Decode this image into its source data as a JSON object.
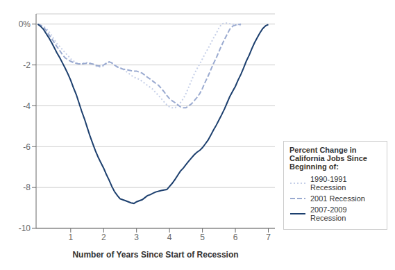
{
  "chart_data": {
    "type": "line",
    "xlabel": "Number of Years Since Start of Recession",
    "xlim": [
      -0.05,
      7.2
    ],
    "xticks": [
      1,
      2,
      3,
      4,
      5,
      6,
      7
    ],
    "ylim": [
      -10,
      0.5
    ],
    "yticks": [
      {
        "value": 0,
        "label": "0%"
      },
      -2,
      -4,
      -6,
      -8,
      -10
    ],
    "grid": "y",
    "legend": "lower right",
    "legend_title": "Percent Change in\nCalifornia Jobs Since\nBeginning of:",
    "series": [
      {
        "name": "1990-1991 Recession",
        "color": "#c5cfe8",
        "line_style": "dotted",
        "x": [
          0.0,
          0.08,
          0.17,
          0.25,
          0.33,
          0.42,
          0.5,
          0.58,
          0.67,
          0.75,
          0.83,
          0.92,
          1.0,
          1.08,
          1.17,
          1.25,
          1.33,
          1.42,
          1.5,
          1.58,
          1.67,
          1.75,
          1.83,
          1.92,
          2.0,
          2.08,
          2.17,
          2.25,
          2.33,
          2.42,
          2.5,
          2.58,
          2.67,
          2.75,
          2.83,
          2.92,
          3.0,
          3.08,
          3.17,
          3.25,
          3.33,
          3.42,
          3.5,
          3.58,
          3.67,
          3.75,
          3.83,
          3.92,
          4.0,
          4.08,
          4.17,
          4.17,
          4.25,
          4.33,
          4.42,
          4.5,
          4.58,
          4.67,
          4.75,
          4.83,
          4.92,
          5.0,
          5.08,
          5.17,
          5.25,
          5.33,
          5.42,
          5.5,
          5.58,
          5.67,
          5.75,
          5.83,
          5.92,
          6.0,
          6.08,
          6.17
        ],
        "values": [
          0.0,
          -0.05,
          -0.1,
          -0.2,
          -0.35,
          -0.55,
          -0.75,
          -0.95,
          -1.1,
          -1.25,
          -1.4,
          -1.55,
          -1.7,
          -1.8,
          -1.9,
          -1.95,
          -1.95,
          -1.9,
          -1.88,
          -1.9,
          -1.95,
          -2.05,
          -2.1,
          -2.1,
          -2.05,
          -1.95,
          -1.85,
          -1.9,
          -2.0,
          -2.1,
          -2.15,
          -2.2,
          -2.3,
          -2.4,
          -2.5,
          -2.6,
          -2.65,
          -2.7,
          -2.8,
          -2.9,
          -3.0,
          -3.1,
          -3.2,
          -3.35,
          -3.5,
          -3.65,
          -3.8,
          -3.95,
          -4.05,
          -4.1,
          -4.1,
          -4.1,
          -4.0,
          -3.85,
          -3.65,
          -3.4,
          -3.1,
          -2.75,
          -2.45,
          -2.2,
          -1.95,
          -1.7,
          -1.45,
          -1.2,
          -0.95,
          -0.7,
          -0.45,
          -0.2,
          0.0,
          0.05,
          0.05,
          0.02,
          0.0,
          -0.02,
          -0.05,
          -0.05
        ]
      },
      {
        "name": "2001 Recession",
        "color": "#9aaad0",
        "line_style": "dashed",
        "x": [
          0.0,
          0.08,
          0.17,
          0.25,
          0.33,
          0.42,
          0.5,
          0.58,
          0.67,
          0.75,
          0.83,
          0.92,
          1.0,
          1.08,
          1.17,
          1.25,
          1.33,
          1.42,
          1.5,
          1.58,
          1.67,
          1.75,
          1.83,
          1.92,
          2.0,
          2.08,
          2.17,
          2.25,
          2.33,
          2.42,
          2.5,
          2.58,
          2.67,
          2.75,
          2.83,
          2.92,
          3.0,
          3.08,
          3.17,
          3.25,
          3.33,
          3.42,
          3.5,
          3.58,
          3.67,
          3.75,
          3.83,
          3.92,
          4.0,
          4.08,
          4.17,
          4.25,
          4.33,
          4.42,
          4.5,
          4.58,
          4.67,
          4.75,
          4.83,
          4.92,
          5.0,
          5.08,
          5.17,
          5.25,
          5.33,
          5.42,
          5.5,
          5.58,
          5.67,
          5.75,
          5.83,
          5.92,
          6.0,
          6.08,
          6.17
        ],
        "values": [
          0.0,
          -0.05,
          -0.15,
          -0.3,
          -0.5,
          -0.7,
          -0.9,
          -1.1,
          -1.3,
          -1.5,
          -1.65,
          -1.75,
          -1.82,
          -1.88,
          -1.92,
          -1.95,
          -1.95,
          -1.93,
          -1.92,
          -1.93,
          -1.95,
          -2.0,
          -2.05,
          -2.05,
          -2.0,
          -1.92,
          -1.85,
          -1.9,
          -2.0,
          -2.1,
          -2.15,
          -2.2,
          -2.22,
          -2.25,
          -2.28,
          -2.3,
          -2.3,
          -2.35,
          -2.4,
          -2.5,
          -2.6,
          -2.7,
          -2.8,
          -2.9,
          -3.0,
          -3.15,
          -3.3,
          -3.5,
          -3.65,
          -3.75,
          -3.85,
          -3.95,
          -4.05,
          -4.1,
          -4.1,
          -4.0,
          -3.9,
          -3.75,
          -3.6,
          -3.4,
          -3.15,
          -2.85,
          -2.55,
          -2.25,
          -1.95,
          -1.65,
          -1.35,
          -1.05,
          -0.75,
          -0.5,
          -0.25,
          -0.1,
          -0.05,
          -0.02,
          0.0
        ]
      },
      {
        "name": "2007-2009 Recession",
        "color": "#1c3f6e",
        "line_style": "solid",
        "x": [
          0.0,
          0.08,
          0.17,
          0.25,
          0.33,
          0.42,
          0.5,
          0.58,
          0.67,
          0.75,
          0.83,
          0.92,
          1.0,
          1.08,
          1.17,
          1.25,
          1.33,
          1.42,
          1.5,
          1.58,
          1.67,
          1.75,
          1.83,
          1.92,
          2.0,
          2.08,
          2.17,
          2.25,
          2.33,
          2.42,
          2.5,
          2.58,
          2.67,
          2.75,
          2.83,
          2.92,
          3.0,
          3.08,
          3.17,
          3.25,
          3.33,
          3.42,
          3.5,
          3.58,
          3.67,
          3.75,
          3.83,
          3.92,
          4.0,
          4.08,
          4.17,
          4.25,
          4.33,
          4.42,
          4.5,
          4.58,
          4.67,
          4.75,
          4.83,
          4.92,
          5.0,
          5.08,
          5.17,
          5.25,
          5.33,
          5.42,
          5.5,
          5.58,
          5.67,
          5.75,
          5.83,
          5.92,
          6.0,
          6.08,
          6.17,
          6.25,
          6.33,
          6.42,
          6.5,
          6.58,
          6.67,
          6.75,
          6.83,
          6.92,
          7.0
        ],
        "values": [
          0.0,
          -0.1,
          -0.25,
          -0.45,
          -0.65,
          -0.9,
          -1.15,
          -1.4,
          -1.65,
          -1.9,
          -2.15,
          -2.45,
          -2.75,
          -3.1,
          -3.45,
          -3.85,
          -4.25,
          -4.65,
          -5.05,
          -5.45,
          -5.85,
          -6.2,
          -6.5,
          -6.8,
          -7.05,
          -7.35,
          -7.65,
          -7.95,
          -8.2,
          -8.4,
          -8.55,
          -8.6,
          -8.65,
          -8.7,
          -8.75,
          -8.78,
          -8.7,
          -8.65,
          -8.6,
          -8.5,
          -8.4,
          -8.35,
          -8.28,
          -8.22,
          -8.18,
          -8.15,
          -8.12,
          -8.1,
          -7.95,
          -7.8,
          -7.6,
          -7.4,
          -7.2,
          -7.05,
          -6.88,
          -6.72,
          -6.55,
          -6.4,
          -6.28,
          -6.18,
          -6.05,
          -5.88,
          -5.68,
          -5.45,
          -5.2,
          -4.95,
          -4.7,
          -4.45,
          -4.15,
          -3.85,
          -3.55,
          -3.28,
          -3.05,
          -2.75,
          -2.45,
          -2.15,
          -1.82,
          -1.52,
          -1.2,
          -0.92,
          -0.65,
          -0.42,
          -0.22,
          -0.08,
          -0.02
        ]
      }
    ]
  }
}
